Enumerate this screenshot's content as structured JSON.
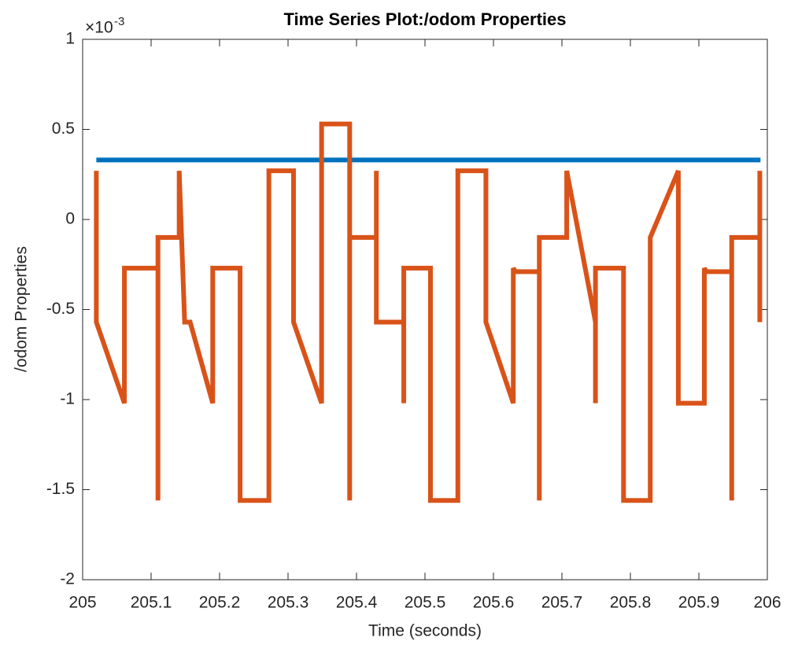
{
  "chart_data": {
    "type": "line",
    "title": "Time Series Plot:/odom Properties",
    "x_label": "Time (seconds)",
    "y_label": "/odom Properties",
    "y_multiplier": {
      "base": "×10",
      "exponent": "-3"
    },
    "xlim": [
      205,
      206
    ],
    "xticks": [
      205,
      205.1,
      205.2,
      205.3,
      205.4,
      205.5,
      205.6,
      205.7,
      205.8,
      205.9,
      206
    ],
    "ylim": [
      -2,
      1
    ],
    "yticks": [
      -2,
      -1.5,
      -1,
      -0.5,
      0,
      0.5,
      1
    ],
    "grid": false,
    "series": [
      {
        "color": "#0072BD",
        "x": [
          205.02,
          205.99
        ],
        "values": [
          0.33,
          0.33
        ]
      },
      {
        "color": "#D95319",
        "x": [
          205.02,
          205.02,
          205.061,
          205.061,
          205.11,
          205.11,
          205.11,
          205.141,
          205.141,
          205.149,
          205.157,
          205.19,
          205.19,
          205.23,
          205.23,
          205.272,
          205.272,
          205.308,
          205.308,
          205.349,
          205.349,
          205.39,
          205.39,
          205.39,
          205.429,
          205.429,
          205.429,
          205.469,
          205.469,
          205.469,
          205.508,
          205.508,
          205.548,
          205.548,
          205.589,
          205.589,
          205.629,
          205.629,
          205.632,
          205.667,
          205.667,
          205.667,
          205.707,
          205.707,
          205.749,
          205.749,
          205.749,
          205.79,
          205.79,
          205.829,
          205.829,
          205.87,
          205.87,
          205.908,
          205.908,
          205.911,
          205.948,
          205.948,
          205.948,
          205.989,
          205.989,
          205.989
        ],
        "values": [
          0.27,
          -0.57,
          -1.02,
          -0.27,
          -0.27,
          -1.56,
          -0.1,
          -0.1,
          0.27,
          -0.57,
          -0.57,
          -1.02,
          -0.27,
          -0.27,
          -1.56,
          -1.56,
          0.27,
          0.27,
          -0.57,
          -1.02,
          0.53,
          0.53,
          -1.56,
          -0.1,
          -0.1,
          0.27,
          -0.57,
          -0.57,
          -1.02,
          -0.27,
          -0.27,
          -1.56,
          -1.56,
          0.27,
          0.27,
          -0.57,
          -1.02,
          -0.27,
          -0.29,
          -0.29,
          -1.56,
          -0.1,
          -0.1,
          0.27,
          -0.57,
          -1.02,
          -0.27,
          -0.27,
          -1.56,
          -1.56,
          -0.1,
          0.27,
          -1.02,
          -1.02,
          -0.27,
          -0.29,
          -0.29,
          -1.56,
          -0.1,
          -0.1,
          0.27,
          -0.57
        ]
      }
    ]
  }
}
